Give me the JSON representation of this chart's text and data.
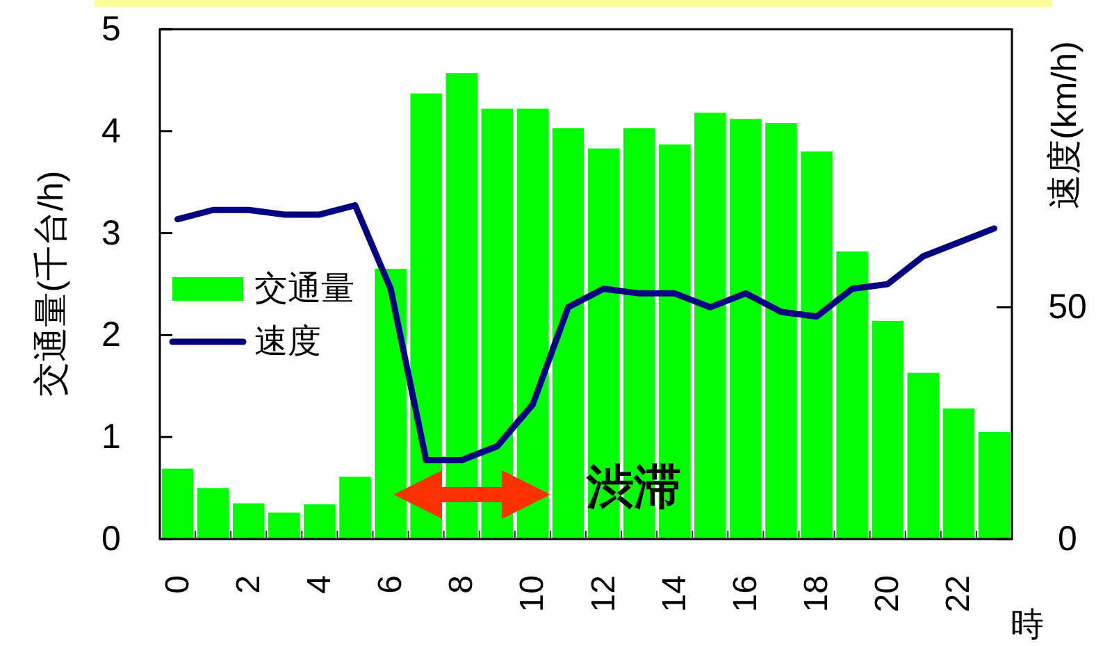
{
  "chart_data": {
    "type": "bar",
    "categories": [
      "0",
      null,
      "2",
      null,
      "4",
      null,
      "6",
      null,
      "8",
      null,
      "10",
      null,
      "12",
      null,
      "14",
      null,
      "16",
      null,
      "18",
      null,
      "20",
      null,
      "22",
      null
    ],
    "xlabel": "時",
    "ylabel": "交通量(千台/h)",
    "y2label": "速度(km/h)",
    "ylim": [
      0,
      5
    ],
    "yticks": [
      0,
      1,
      2,
      3,
      4,
      5
    ],
    "y2lim": [
      0,
      110
    ],
    "y2ticks": [
      0,
      50
    ],
    "legend": "left",
    "annotations": [
      "渋滞"
    ],
    "series": [
      {
        "name": "交通量",
        "color": "#00ff00",
        "values": [
          0.69,
          0.5,
          0.35,
          0.26,
          0.34,
          0.61,
          2.65,
          4.37,
          4.57,
          4.22,
          4.22,
          4.03,
          3.83,
          4.03,
          3.87,
          4.18,
          4.12,
          4.08,
          3.8,
          2.82,
          2.14,
          1.63,
          1.28,
          1.05
        ]
      },
      {
        "name": "速度",
        "type": "line",
        "axis": "y2",
        "color": "#000080",
        "values": [
          69,
          71,
          71,
          70,
          70,
          72,
          54,
          17,
          17,
          20,
          29,
          50,
          54,
          53,
          53,
          50,
          53,
          49,
          48,
          54,
          55,
          61,
          64,
          67
        ]
      }
    ]
  }
}
